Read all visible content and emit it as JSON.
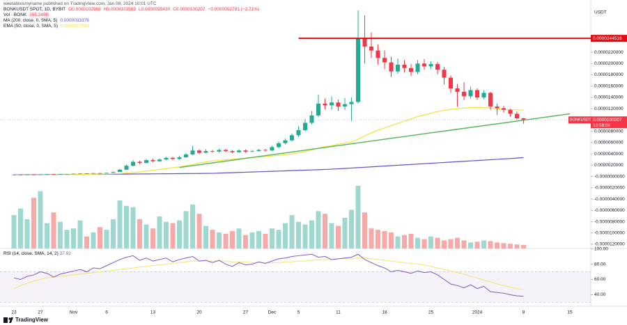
{
  "header": {
    "publisher": "weetabixismyname published on TradingView.com, Jan 08, 2024 10:01 UTC"
  },
  "chart_data": {
    "type": "candlestick",
    "symbol": "BONKUSDT SPOT, 1D, BYBIT",
    "ohlc": [
      "O0.0000102968",
      "H0.0000103583",
      "L0.0000093430",
      "C0.0000100207"
    ],
    "change": "−0.0000002791 (−2.71%)",
    "categories": [
      "23",
      null,
      null,
      null,
      "27",
      null,
      null,
      null,
      null,
      "Nov",
      null,
      null,
      null,
      null,
      "6",
      null,
      null,
      null,
      null,
      null,
      null,
      "13",
      null,
      null,
      null,
      null,
      null,
      null,
      "20",
      null,
      null,
      null,
      null,
      null,
      null,
      "27",
      null,
      null,
      null,
      "Dec",
      null,
      null,
      null,
      "5",
      null,
      null,
      null,
      null,
      null,
      "11",
      null,
      null,
      null,
      null,
      null,
      null,
      "18",
      null,
      null,
      null,
      null,
      null,
      null,
      "25",
      null,
      null,
      null,
      null,
      null,
      null,
      "2024",
      null,
      null,
      null,
      null,
      null,
      null,
      "8",
      null,
      null,
      null,
      null,
      null,
      null,
      "15"
    ],
    "open": [
      2.8e-07,
      3e-07,
      3.2e-07,
      3.5e-07,
      3.3e-07,
      3.8e-07,
      4e-07,
      3.7e-07,
      4.2e-07,
      4.5e-07,
      5e-07,
      5.5e-07,
      5.2e-07,
      6e-07,
      5.8e-07,
      6.5e-07,
      8e-07,
      1.2e-06,
      1.9e-06,
      2.6e-06,
      2.4e-06,
      2.9e-06,
      2.7e-06,
      3e-06,
      3.3e-06,
      3.1e-06,
      3.4e-06,
      3.9e-06,
      4.6e-06,
      4.2e-06,
      4.5e-06,
      4.4e-06,
      4.7e-06,
      4.5e-06,
      4.3e-06,
      4.6e-06,
      4.4e-06,
      4.5e-06,
      4.7e-06,
      4.6e-06,
      5.2e-06,
      5.9e-06,
      6.4e-06,
      7.3e-06,
      8.2e-06,
      9.5e-06,
      1.08e-05,
      1.29e-05,
      1.26e-05,
      1.31e-05,
      1.24e-05,
      1.28e-05,
      1.32e-05,
      2.45e-05,
      2.3e-05,
      2.23e-05,
      2.1e-05,
      2.02e-05,
      1.86e-05,
      1.98e-05,
      1.92e-05,
      1.85e-05,
      2e-05,
      1.95e-05,
      1.99e-05,
      1.89e-05,
      1.75e-05,
      1.56e-05,
      1.5e-05,
      1.42e-05,
      1.53e-05,
      1.4e-05,
      1.48e-05,
      1.24e-05,
      1.21e-05,
      1.18e-05,
      1.11e-05,
      1.02968e-05,
      null,
      null,
      null,
      null,
      null,
      null,
      null
    ],
    "high": [
      3.1e-07,
      3.3e-07,
      3.6e-07,
      3.6e-07,
      3.9e-07,
      4.2e-07,
      4.1e-07,
      4.3e-07,
      4.7e-07,
      5.2e-07,
      5.7e-07,
      5.7e-07,
      6.2e-07,
      6.3e-07,
      6.8e-07,
      8.5e-07,
      1.3e-06,
      2.1e-06,
      2.9e-06,
      2.8e-06,
      3.1e-06,
      3.2e-06,
      3.2e-06,
      3.5e-06,
      3.5e-06,
      3.7e-06,
      4.2e-06,
      5.4e-06,
      4.8e-06,
      4.8e-06,
      4.7e-06,
      4.9e-06,
      4.9e-06,
      4.7e-06,
      4.8e-06,
      4.8e-06,
      4.7e-06,
      4.9e-06,
      4.9e-06,
      5.4e-06,
      6.2e-06,
      6.7e-06,
      7.6e-06,
      8.9e-06,
      1.02e-05,
      1.16e-05,
      1.45e-05,
      1.38e-05,
      1.42e-05,
      1.36e-05,
      1.39e-05,
      1.4e-05,
      2.94e-05,
      2.85e-05,
      2.55e-05,
      2.34e-05,
      2.23e-05,
      2.12e-05,
      2.09e-05,
      2.06e-05,
      1.99e-05,
      2.06e-05,
      2.08e-05,
      2.04e-05,
      2.03e-05,
      1.94e-05,
      1.79e-05,
      1.64e-05,
      1.67e-05,
      1.59e-05,
      1.56e-05,
      1.53e-05,
      1.5e-05,
      1.29e-05,
      1.25e-05,
      1.2e-05,
      1.15e-05,
      1.03583e-05,
      null,
      null,
      null,
      null,
      null,
      null,
      null
    ],
    "low": [
      2.7e-07,
      2.9e-07,
      3.1e-07,
      3.2e-07,
      3.2e-07,
      3.7e-07,
      3.6e-07,
      3.6e-07,
      4.1e-07,
      4.4e-07,
      4.9e-07,
      5e-07,
      5.1e-07,
      5.6e-07,
      5.7e-07,
      6.3e-07,
      7.8e-07,
      1.15e-06,
      1.8e-06,
      2.2e-06,
      2.3e-06,
      2.5e-06,
      2.6e-06,
      2.9e-06,
      2.9e-06,
      3e-06,
      3.3e-06,
      3.8e-06,
      4e-06,
      4.1e-06,
      4.2e-06,
      4.3e-06,
      4.3e-06,
      4.1e-06,
      4.2e-06,
      4.2e-06,
      4.3e-06,
      4.4e-06,
      4.4e-06,
      4.5e-06,
      5e-06,
      5.7e-06,
      6.2e-06,
      7e-06,
      8e-06,
      9.2e-06,
      1.05e-05,
      1.19e-05,
      1.18e-05,
      1.16e-05,
      1.18e-05,
      9.8e-06,
      1.29e-05,
      2e-05,
      2.1e-05,
      1.98e-05,
      1.9e-05,
      1.76e-05,
      1.82e-05,
      1.84e-05,
      1.78e-05,
      1.81e-05,
      1.89e-05,
      1.9e-05,
      1.81e-05,
      1.63e-05,
      1.48e-05,
      1.24e-05,
      1.35e-05,
      1.38e-05,
      1.36e-05,
      1.37e-05,
      1.18e-05,
      1.09e-05,
      1.13e-05,
      1.06e-05,
      1.01e-05,
      9.343e-06,
      null,
      null,
      null,
      null,
      null,
      null,
      null
    ],
    "close": [
      3e-07,
      3.2e-07,
      3.5e-07,
      3.3e-07,
      3.8e-07,
      4e-07,
      3.7e-07,
      4.2e-07,
      4.5e-07,
      5e-07,
      5.5e-07,
      5.2e-07,
      6e-07,
      5.8e-07,
      6.5e-07,
      8e-07,
      1.2e-06,
      1.9e-06,
      2.6e-06,
      2.4e-06,
      2.9e-06,
      2.7e-06,
      3e-06,
      3.3e-06,
      3.1e-06,
      3.4e-06,
      3.9e-06,
      4.6e-06,
      4.2e-06,
      4.5e-06,
      4.4e-06,
      4.7e-06,
      4.5e-06,
      4.3e-06,
      4.6e-06,
      4.4e-06,
      4.5e-06,
      4.7e-06,
      4.6e-06,
      5.2e-06,
      5.9e-06,
      6.4e-06,
      7.3e-06,
      8.2e-06,
      9.5e-06,
      1.08e-05,
      1.29e-05,
      1.26e-05,
      1.31e-05,
      1.24e-05,
      1.28e-05,
      1.32e-05,
      2.45e-05,
      2.3e-05,
      2.23e-05,
      2.1e-05,
      2.02e-05,
      1.86e-05,
      1.98e-05,
      1.92e-05,
      1.85e-05,
      2e-05,
      1.95e-05,
      1.99e-05,
      1.89e-05,
      1.75e-05,
      1.56e-05,
      1.5e-05,
      1.42e-05,
      1.53e-05,
      1.4e-05,
      1.48e-05,
      1.24e-05,
      1.21e-05,
      1.18e-05,
      1.11e-05,
      1.03e-05,
      1.00207e-05,
      null,
      null,
      null,
      null,
      null,
      null,
      null
    ],
    "up_color": "#22ab94",
    "down_color": "#f23645",
    "ylim": [
      -1.2e-05,
      3.1e-05
    ],
    "yticks": [
      {
        "value": 2.2e-05,
        "label": "0.0000220000"
      },
      {
        "value": 2e-05,
        "label": "0.0000200000"
      },
      {
        "value": 1.8e-05,
        "label": "0.0000180000"
      },
      {
        "value": 1.6e-05,
        "label": "0.0000160000"
      },
      {
        "value": 1.4e-05,
        "label": "0.0000140000"
      },
      {
        "value": 1.2e-05,
        "label": "0.0000120000"
      },
      {
        "value": 8e-06,
        "label": "0.0000080000"
      },
      {
        "value": 6e-06,
        "label": "0.0000060000"
      },
      {
        "value": 4e-06,
        "label": "0.0000040000"
      },
      {
        "value": 2e-06,
        "label": "0.0000020000"
      },
      {
        "value": 0,
        "label": "-0.0000000000"
      },
      {
        "value": -2e-06,
        "label": "-0.0000020000"
      },
      {
        "value": -4e-06,
        "label": "-0.0000040000"
      },
      {
        "value": -6e-06,
        "label": "-0.0000060000"
      },
      {
        "value": -8e-06,
        "label": "-0.0000080000"
      },
      {
        "value": -1e-05,
        "label": "-0.0000100000"
      },
      {
        "value": -1.2e-05,
        "label": "-0.0000120000"
      }
    ],
    "y_unit": "USDT",
    "volume": {
      "name": "Vol · BONK",
      "value_label": "265.248B",
      "up_color": "#9ed8d0",
      "down_color": "#f7a9a7",
      "values": [
        2500,
        3000,
        2200,
        3800,
        4300,
        1900,
        2700,
        2000,
        1400,
        1500,
        2100,
        900,
        1200,
        1600,
        1400,
        2200,
        3600,
        3200,
        3100,
        2200,
        1800,
        1500,
        2400,
        2000,
        1900,
        2100,
        2800,
        3300,
        2600,
        1700,
        1400,
        1200,
        1100,
        1300,
        1500,
        1000,
        1200,
        1300,
        1100,
        1500,
        1400,
        1900,
        2500,
        2000,
        1800,
        2100,
        2800,
        2600,
        1900,
        1700,
        2300,
        2900,
        4700,
        2700,
        1500,
        1400,
        1300,
        1200,
        900,
        1000,
        1100,
        800,
        700,
        900,
        800,
        600,
        700,
        800,
        600,
        450,
        500,
        600,
        550,
        450,
        400,
        350,
        300,
        265.248,
        null,
        null,
        null,
        null,
        null,
        null,
        null
      ]
    },
    "series": [
      {
        "name": "MA (200, close, 0, SMA, 5)",
        "value_label": "0.0000033376",
        "color": "#5b4fd1",
        "values": [
          3e-07,
          3.1e-07,
          3.2e-07,
          3.2e-07,
          3.3e-07,
          3.4e-07,
          3.4e-07,
          3.5e-07,
          3.6e-07,
          3.6e-07,
          3.7e-07,
          3.8e-07,
          3.9e-07,
          3.9e-07,
          4e-07,
          4.1e-07,
          4.2e-07,
          4.3e-07,
          4.4e-07,
          4.5e-07,
          4.6e-07,
          4.7e-07,
          4.8e-07,
          4.9e-07,
          5e-07,
          5.1e-07,
          5.2e-07,
          5.3e-07,
          5.4e-07,
          5.5e-07,
          5.6e-07,
          6e-07,
          6.4e-07,
          6.8e-07,
          7.2e-07,
          7.6e-07,
          8e-07,
          8.4e-07,
          8.8e-07,
          9.2e-07,
          9.6e-07,
          1e-06,
          1.04e-06,
          1.08e-06,
          1.12e-06,
          1.16e-06,
          1.2e-06,
          1.25e-06,
          1.3e-06,
          1.36e-06,
          1.43e-06,
          1.5e-06,
          1.57e-06,
          1.64e-06,
          1.71e-06,
          1.78e-06,
          1.85e-06,
          1.92e-06,
          1.99e-06,
          2.06e-06,
          2.13e-06,
          2.2e-06,
          2.27e-06,
          2.34e-06,
          2.41e-06,
          2.48e-06,
          2.55e-06,
          2.62e-06,
          2.69e-06,
          2.76e-06,
          2.83e-06,
          2.9e-06,
          2.97e-06,
          3.04e-06,
          3.11e-06,
          3.18e-06,
          3.26e-06,
          3.3376e-06,
          null,
          null,
          null,
          null,
          null,
          null,
          null
        ]
      },
      {
        "name": "EMA (50, close, 0, SMA, 5)",
        "value_label": "0.0000117593",
        "color": "#f5e13b",
        "values": [
          2.5e-07,
          2.6e-07,
          2.7e-07,
          2.8e-07,
          2.9e-07,
          3e-07,
          3.1e-07,
          3.2e-07,
          3.3e-07,
          3.5e-07,
          3.7e-07,
          3.9e-07,
          4.1e-07,
          4.3e-07,
          4.5e-07,
          4.8e-07,
          5.2e-07,
          6e-07,
          7e-07,
          8e-07,
          9.5e-07,
          1.1e-06,
          1.25e-06,
          1.4e-06,
          1.55e-06,
          1.7e-06,
          1.9e-06,
          2.1e-06,
          2.4e-06,
          2.6e-06,
          2.75e-06,
          2.85e-06,
          2.95e-06,
          3.05e-06,
          3.15e-06,
          3.25e-06,
          3.35e-06,
          3.45e-06,
          3.55e-06,
          3.65e-06,
          3.75e-06,
          3.85e-06,
          4e-06,
          4.2e-06,
          4.4e-06,
          4.7e-06,
          5e-06,
          5.3e-06,
          5.5e-06,
          5.7e-06,
          5.9e-06,
          6.1e-06,
          6.6e-06,
          7.2e-06,
          7.7e-06,
          8.2e-06,
          8.6e-06,
          9e-06,
          9.4e-06,
          9.8e-06,
          1.02e-05,
          1.06e-05,
          1.09e-05,
          1.12e-05,
          1.15e-05,
          1.17e-05,
          1.19e-05,
          1.2e-05,
          1.21e-05,
          1.22e-05,
          1.22e-05,
          1.22e-05,
          1.21e-05,
          1.2e-05,
          1.19e-05,
          1.18e-05,
          1.18e-05,
          1.17593e-05,
          null,
          null,
          null,
          null,
          null,
          null,
          null
        ]
      }
    ],
    "horizontal_line": {
      "value": 2.44516e-05,
      "label": "0.0000244516",
      "color": "#e50914",
      "x_start": 43
    },
    "trend_line": {
      "x": [
        25,
        84
      ],
      "y": [
        1.6e-06,
        1.11e-05
      ],
      "color": "#5cb85c"
    },
    "last_price": {
      "value": 1.00207e-05,
      "label": "0.0000100207",
      "symbol": "BONKUSDT",
      "countdown": "13:58:58"
    },
    "rsi": {
      "name": "RSI (14, close, SMA, 14, 2)",
      "value_label": "37.92",
      "color": "#7e57c2",
      "ma_color": "#f7e36b",
      "values": [
        62,
        60,
        64,
        66,
        70,
        68,
        63,
        67,
        69,
        71,
        73,
        70,
        75,
        74,
        78,
        82,
        86,
        89,
        91,
        85,
        88,
        84,
        86,
        88,
        83,
        86,
        88,
        90,
        84,
        85,
        82,
        85,
        80,
        77,
        82,
        79,
        80,
        83,
        81,
        84,
        87,
        88,
        90,
        91,
        92,
        93,
        89,
        90,
        86,
        87,
        88,
        89,
        93,
        86,
        82,
        78,
        75,
        70,
        72,
        70,
        68,
        71,
        69,
        70,
        66,
        60,
        54,
        52,
        49,
        53,
        48,
        51,
        44,
        43,
        42,
        40,
        38.5,
        37.92,
        null,
        null,
        null,
        null,
        null,
        null,
        null
      ],
      "ma": [
        48,
        52,
        55,
        58,
        60,
        62,
        63,
        64,
        65,
        66,
        67,
        68,
        69,
        70,
        71,
        72,
        73,
        74,
        75,
        76,
        77,
        78,
        79,
        80,
        81,
        82,
        83,
        84,
        84,
        84,
        84,
        84,
        84,
        83,
        83,
        83,
        82,
        82,
        82,
        82,
        82,
        83,
        83,
        84,
        84,
        85,
        86,
        86,
        86,
        87,
        87,
        87,
        88,
        88,
        87,
        86,
        85,
        84,
        83,
        82,
        81,
        80,
        79,
        77,
        75,
        73,
        71,
        69,
        67,
        64,
        62,
        59,
        57,
        54,
        52,
        50,
        48,
        47,
        null,
        null,
        null,
        null,
        null,
        null,
        null
      ],
      "ylim": [
        25,
        100.5
      ],
      "yticks": [
        {
          "value": 100,
          "label": "100.00"
        },
        {
          "value": 80,
          "label": "80.00"
        },
        {
          "value": 60,
          "label": "60.00"
        },
        {
          "value": 40,
          "label": "40.00"
        }
      ],
      "band": [
        30,
        70
      ]
    }
  },
  "branding": "TradingView"
}
